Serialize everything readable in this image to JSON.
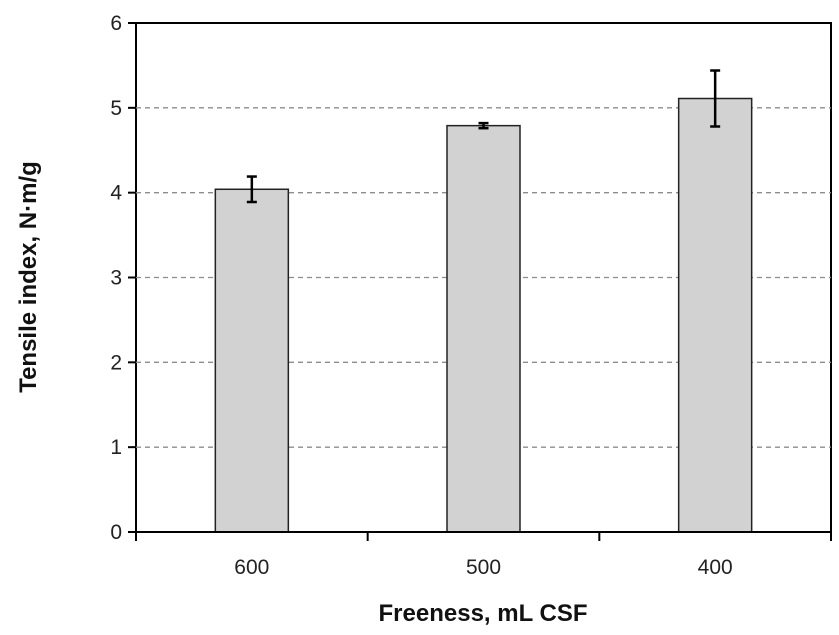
{
  "chart_data": {
    "type": "bar",
    "title": "",
    "xlabel": "Freeness, mL CSF",
    "ylabel": "Tensile index, N·m/g",
    "categories": [
      "600",
      "500",
      "400"
    ],
    "values": [
      4.04,
      4.79,
      5.11
    ],
    "error": [
      0.15,
      0.03,
      0.33
    ],
    "ylim": [
      0,
      6
    ],
    "yticks": [
      "0",
      "1",
      "2",
      "3",
      "4",
      "5",
      "6"
    ],
    "grid": "horizontal dashed",
    "legend": "none",
    "colors": {
      "bar_fill": "#d2d2d2",
      "bar_stroke": "#222222",
      "grid": "#8c8c8c",
      "axis": "#000000"
    }
  }
}
